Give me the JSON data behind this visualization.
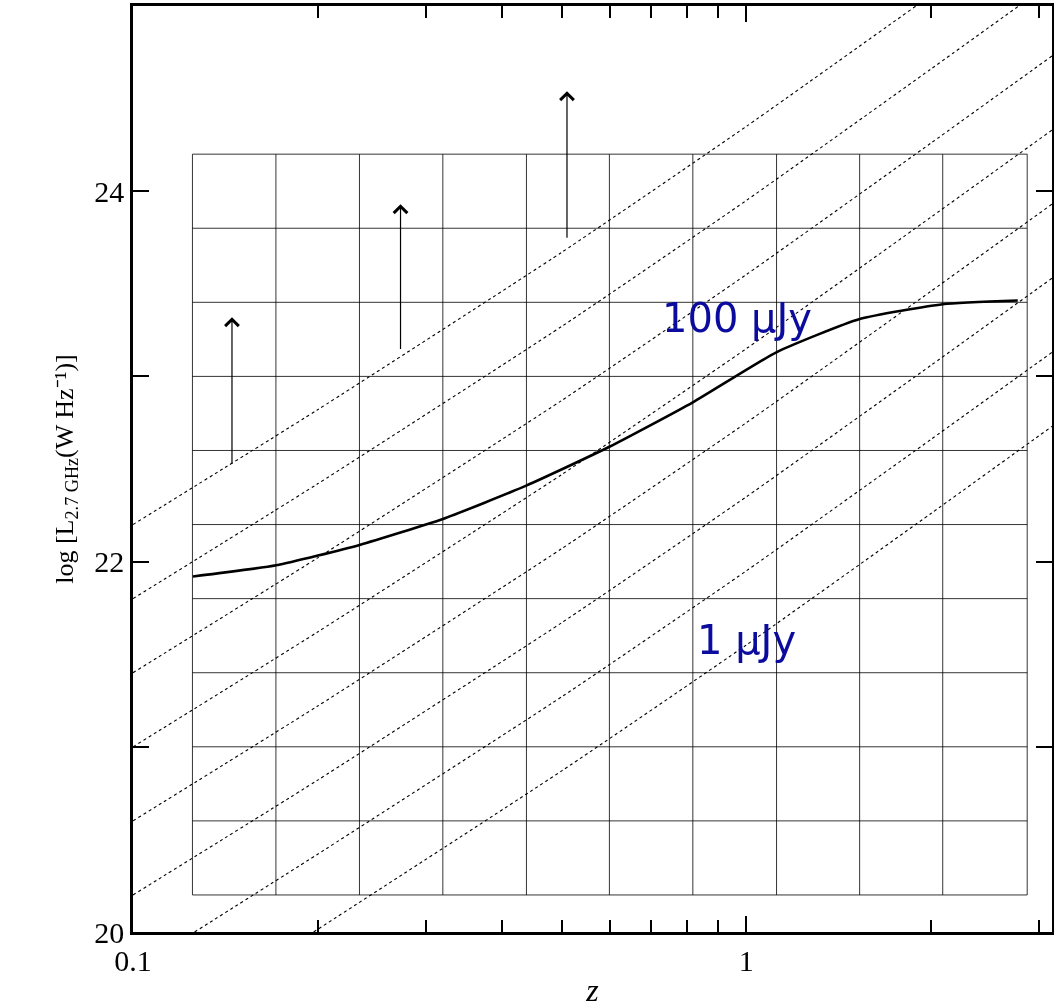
{
  "chart_data": {
    "type": "line",
    "xlabel": "z",
    "ylabel": "log [L$_{2.7 GHz}$(W Hz⁻¹)]",
    "log": "x",
    "xlim": [
      0.1,
      3.15
    ],
    "ylim": [
      20,
      25
    ],
    "xticks": [
      0.1,
      {
        "value": 0.2,
        "label": null
      },
      {
        "value": 0.3,
        "label": null
      },
      {
        "value": 0.4,
        "label": null
      },
      {
        "value": 0.5,
        "label": null
      },
      {
        "value": 0.6,
        "label": null
      },
      {
        "value": 0.7,
        "label": null
      },
      {
        "value": 0.8,
        "label": null
      },
      {
        "value": 0.9,
        "label": null
      },
      1,
      {
        "value": 2,
        "label": null
      },
      {
        "value": 3,
        "label": null
      }
    ],
    "yticks": [
      20,
      {
        "value": 21,
        "label": null
      },
      22,
      {
        "value": 23,
        "label": null
      },
      24
    ],
    "series": [
      {
        "color": "#000000",
        "line_style": "solid",
        "x": [
          0.1252,
          0.1712,
          0.2341,
          0.32,
          0.4376,
          0.598,
          0.818,
          1.119,
          1.53,
          2.09,
          2.77
        ],
        "values": [
          21.92,
          21.98,
          22.09,
          22.23,
          22.41,
          22.62,
          22.86,
          23.13,
          23.31,
          23.39,
          23.41
        ]
      },
      {
        "type": "line",
        "color": "#000000",
        "line_style": "dotted",
        "x": [
          0.1,
          0.2,
          0.5,
          1,
          1.89
        ],
        "values": [
          22.2,
          22.82,
          23.67,
          24.35,
          25.0
        ]
      },
      {
        "type": "line",
        "color": "#000000",
        "line_style": "dotted",
        "x": [
          0.1,
          0.2,
          0.5,
          1,
          2,
          2.78
        ],
        "values": [
          21.8,
          22.42,
          23.27,
          23.95,
          24.66,
          25.0
        ]
      },
      {
        "type": "line",
        "color": "#000000",
        "line_style": "dotted",
        "x": [
          0.1,
          0.2,
          0.5,
          1,
          2,
          3.15
        ],
        "values": [
          21.4,
          22.02,
          22.87,
          23.55,
          24.26,
          24.73
        ]
      },
      {
        "type": "line",
        "color": "#000000",
        "line_style": "dotted",
        "x": [
          0.1,
          0.2,
          0.5,
          1,
          2,
          3.15
        ],
        "values": [
          21.0,
          21.62,
          22.47,
          23.15,
          23.86,
          24.33
        ]
      },
      {
        "type": "line",
        "color": "#000000",
        "line_style": "dotted",
        "x": [
          0.1,
          0.2,
          0.5,
          1,
          2,
          3.15
        ],
        "values": [
          20.6,
          21.22,
          22.07,
          22.75,
          23.46,
          23.93
        ]
      },
      {
        "type": "line",
        "color": "#000000",
        "line_style": "dotted",
        "x": [
          0.1,
          0.2,
          0.5,
          1,
          2,
          3.15
        ],
        "values": [
          20.2,
          20.82,
          21.67,
          22.35,
          23.06,
          23.53
        ]
      },
      {
        "type": "line",
        "color": "#000000",
        "line_style": "dotted",
        "x": [
          0.126,
          0.2,
          0.5,
          1,
          2,
          3.15
        ],
        "values": [
          20.0,
          20.42,
          21.27,
          21.95,
          22.66,
          23.13
        ]
      },
      {
        "type": "line",
        "color": "#000000",
        "line_style": "dotted",
        "x": [
          0.197,
          0.5,
          1,
          2,
          3.15
        ],
        "values": [
          20.0,
          20.87,
          21.55,
          22.26,
          22.73
        ]
      },
      {
        "type": "scatter",
        "color": "#000000",
        "marker": "none",
        "x": [
          0.145,
          0.273,
          0.51
        ],
        "values": [
          23.29,
          23.9,
          24.51
        ],
        "errors": [
          [
            22.52,
            23.32
          ],
          [
            23.14,
            23.93
          ],
          [
            23.74,
            24.54
          ]
        ]
      }
    ],
    "ref_lines": [
      {
        "axis": "x",
        "value": 0.125,
        "color": "#000000"
      },
      {
        "axis": "x",
        "value": 0.171,
        "color": "#000000"
      },
      {
        "axis": "x",
        "value": 0.234,
        "color": "#000000"
      },
      {
        "axis": "x",
        "value": 0.32,
        "color": "#000000"
      },
      {
        "axis": "x",
        "value": 0.438,
        "color": "#000000"
      },
      {
        "axis": "x",
        "value": 0.598,
        "color": "#000000"
      },
      {
        "axis": "x",
        "value": 0.818,
        "color": "#000000"
      },
      {
        "axis": "x",
        "value": 1.12,
        "color": "#000000"
      },
      {
        "axis": "x",
        "value": 1.53,
        "color": "#000000"
      },
      {
        "axis": "x",
        "value": 2.09,
        "color": "#000000"
      },
      {
        "axis": "x",
        "value": 2.87,
        "color": "#000000"
      },
      {
        "axis": "y",
        "value": 20.2,
        "color": "#000000"
      },
      {
        "axis": "y",
        "value": 20.6,
        "color": "#000000"
      },
      {
        "axis": "y",
        "value": 21.0,
        "color": "#000000"
      },
      {
        "axis": "y",
        "value": 21.4,
        "color": "#000000"
      },
      {
        "axis": "y",
        "value": 21.8,
        "color": "#000000"
      },
      {
        "axis": "y",
        "value": 22.2,
        "color": "#000000"
      },
      {
        "axis": "y",
        "value": 22.6,
        "color": "#000000"
      },
      {
        "axis": "y",
        "value": 23.0,
        "color": "#000000"
      },
      {
        "axis": "y",
        "value": 23.4,
        "color": "#000000"
      },
      {
        "axis": "y",
        "value": 23.8,
        "color": "#000000"
      },
      {
        "axis": "y",
        "value": 24.2,
        "color": "#000000"
      }
    ],
    "annotations": [
      "100 μJy",
      "1 μJy"
    ]
  }
}
